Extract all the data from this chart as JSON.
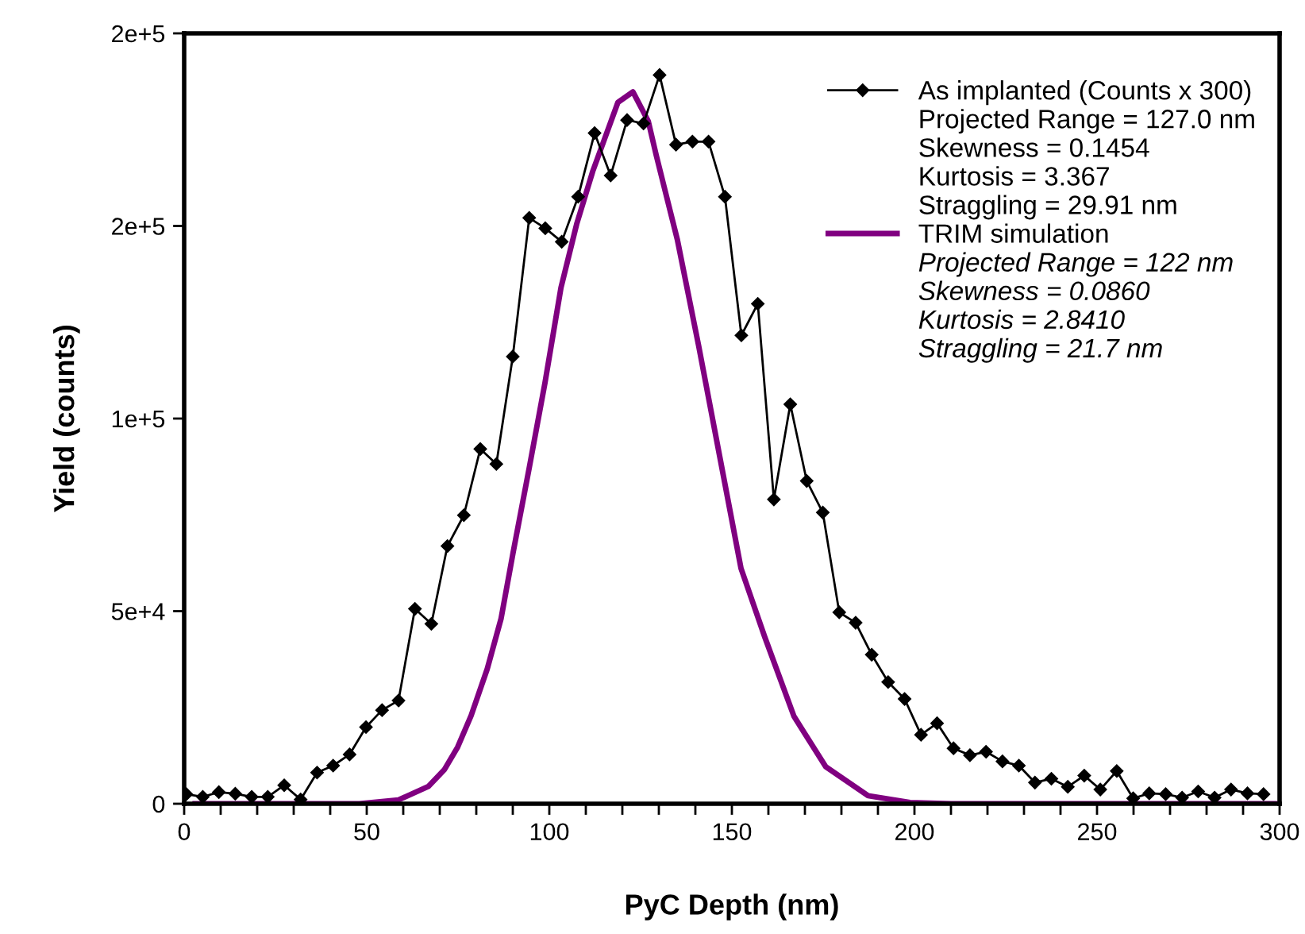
{
  "chart_data": {
    "type": "line",
    "xlabel": "PyC Depth (nm)",
    "ylabel": "Yield (counts)",
    "xlim": [
      0,
      300
    ],
    "ylim": [
      0,
      200000
    ],
    "xticks": [
      0,
      {
        "value": 10,
        "label": null
      },
      {
        "value": 20,
        "label": null
      },
      {
        "value": 30,
        "label": null
      },
      {
        "value": 40,
        "label": null
      },
      50,
      {
        "value": 60,
        "label": null
      },
      {
        "value": 70,
        "label": null
      },
      {
        "value": 80,
        "label": null
      },
      {
        "value": 90,
        "label": null
      },
      100,
      {
        "value": 110,
        "label": null
      },
      {
        "value": 120,
        "label": null
      },
      {
        "value": 130,
        "label": null
      },
      {
        "value": 140,
        "label": null
      },
      150,
      {
        "value": 160,
        "label": null
      },
      {
        "value": 170,
        "label": null
      },
      {
        "value": 180,
        "label": null
      },
      {
        "value": 190,
        "label": null
      },
      200,
      {
        "value": 210,
        "label": null
      },
      {
        "value": 220,
        "label": null
      },
      {
        "value": 230,
        "label": null
      },
      {
        "value": 240,
        "label": null
      },
      250,
      {
        "value": 260,
        "label": null
      },
      {
        "value": 270,
        "label": null
      },
      {
        "value": 280,
        "label": null
      },
      {
        "value": 290,
        "label": null
      },
      300
    ],
    "yticks": [
      0,
      {
        "value": 50000,
        "label": "5e+4"
      },
      {
        "value": 100000,
        "label": "1e+5"
      },
      {
        "value": 150000,
        "label": "2e+5"
      },
      {
        "value": 200000,
        "label": "2e+5"
      }
    ],
    "grid": false,
    "legend": "top right",
    "series": [
      {
        "name": "As implanted (Counts x 300)",
        "color": "#000000",
        "marker": "diamond",
        "x": [
          0.6,
          5.1,
          9.5,
          14.0,
          18.5,
          22.9,
          27.4,
          31.9,
          36.4,
          40.8,
          45.3,
          49.8,
          54.2,
          58.7,
          63.2,
          67.7,
          72.1,
          76.6,
          81.1,
          85.5,
          90.0,
          94.5,
          98.9,
          103.4,
          107.9,
          112.4,
          116.8,
          121.3,
          125.8,
          130.2,
          134.7,
          139.2,
          143.6,
          148.1,
          152.6,
          157.1,
          161.5,
          166.0,
          170.5,
          174.9,
          179.4,
          183.9,
          188.3,
          192.8,
          197.3,
          201.8,
          206.2,
          210.7,
          215.2,
          219.6,
          224.1,
          228.6,
          233.0,
          237.5,
          242.0,
          246.5,
          250.9,
          255.4,
          259.9,
          264.3,
          268.8,
          273.3,
          277.7,
          282.2,
          286.7,
          291.2,
          295.6
        ],
        "values": [
          2500,
          1800,
          3000,
          2600,
          1800,
          1800,
          4800,
          1100,
          8100,
          9900,
          12800,
          19900,
          24300,
          26800,
          50600,
          46700,
          66900,
          74900,
          92100,
          88200,
          116100,
          152100,
          149400,
          145900,
          157600,
          174100,
          163100,
          177500,
          176600,
          189200,
          171100,
          171900,
          171900,
          157600,
          121600,
          129800,
          79000,
          103700,
          83800,
          75600,
          49700,
          47000,
          38700,
          31600,
          27200,
          17900,
          20900,
          14400,
          12600,
          13500,
          11000,
          9900,
          5500,
          6500,
          4400,
          7300,
          3700,
          8500,
          1400,
          2700,
          2500,
          1600,
          3200,
          1600,
          3700,
          2700,
          2500
        ]
      },
      {
        "name": "TRIM simulation",
        "color": "#800080",
        "marker": "none",
        "x": [
          3,
          48,
          58.7,
          66.9,
          71.3,
          74.9,
          78.6,
          83.0,
          86.8,
          90.1,
          94.5,
          98.8,
          103.2,
          107.5,
          111.9,
          118.8,
          122.9,
          127.1,
          129.3,
          135.1,
          140.9,
          146.7,
          152.5,
          159.0,
          167.0,
          175.7,
          187.3,
          198.8,
          210,
          298.7
        ],
        "values": [
          0,
          0,
          1000,
          4500,
          8900,
          14700,
          22900,
          35000,
          48100,
          65300,
          87200,
          109200,
          134000,
          150500,
          164200,
          182100,
          184800,
          177200,
          168300,
          146300,
          118900,
          90000,
          61100,
          43300,
          22700,
          9600,
          2100,
          300,
          0,
          0
        ]
      }
    ],
    "annotations": [
      "Projected Range = 127.0 nm",
      "Skewness = 0.1454",
      "Kurtosis = 3.367",
      "Straggling = 29.91 nm",
      "Projected Range = 122 nm",
      "Skewness = 0.0860",
      "Kurtosis = 2.8410",
      "Straggling = 21.7 nm"
    ]
  }
}
